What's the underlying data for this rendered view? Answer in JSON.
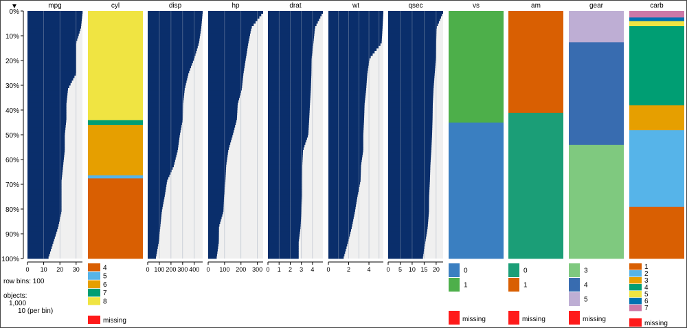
{
  "chart_data": {
    "type": "tableplot",
    "sort_indicator": "▼",
    "y_ticks": [
      "0%",
      "10%",
      "20%",
      "30%",
      "40%",
      "50%",
      "60%",
      "70%",
      "80%",
      "90%",
      "100%"
    ],
    "sidebar": {
      "row_bins_label": "row bins:",
      "row_bins_value": "100",
      "objects_label": "objects:",
      "objects_value": "1,000",
      "per_bin_value": "10",
      "per_bin_label": "(per bin)"
    },
    "missing_label": "missing",
    "missing_color": "#ff1a1a",
    "numeric_fill": "#0a2e6b",
    "numeric_bg": "#f0f0f0",
    "numeric_columns": [
      {
        "name": "mpg",
        "min": 10.4,
        "max": 33.9,
        "ticks": [
          0,
          10,
          20,
          30
        ],
        "xmax": 33.9,
        "rank": [
          13,
          16,
          19,
          21,
          21,
          21,
          22,
          23,
          23,
          24,
          24,
          25,
          30,
          30,
          30,
          33,
          34
        ],
        "grid": [
          10,
          20,
          30
        ]
      },
      {
        "name": "disp",
        "min": 71.1,
        "max": 472,
        "ticks": [
          0,
          100,
          200,
          300,
          400
        ],
        "xmax": 472,
        "rank": [
          472,
          460,
          440,
          400,
          350,
          318,
          304,
          301,
          276,
          258,
          225,
          167,
          146,
          121,
          108,
          95,
          71
        ],
        "grid": [
          100,
          200,
          300,
          400
        ]
      },
      {
        "name": "hp",
        "min": 52,
        "max": 335,
        "ticks": [
          0,
          100,
          200,
          300
        ],
        "xmax": 335,
        "rank": [
          335,
          264,
          245,
          230,
          215,
          205,
          180,
          175,
          150,
          123,
          110,
          105,
          97,
          93,
          66,
          65,
          52
        ],
        "grid": [
          100,
          200,
          300
        ]
      },
      {
        "name": "drat",
        "min": 2.76,
        "max": 4.93,
        "ticks": [
          0,
          1,
          2,
          3,
          4
        ],
        "xmax": 4.93,
        "rank": [
          4.93,
          4.22,
          4.08,
          3.92,
          3.9,
          3.85,
          3.77,
          3.7,
          3.62,
          3.15,
          3.08,
          3.07,
          3.07,
          3.0,
          2.93,
          2.76,
          2.76
        ],
        "grid": [
          1,
          2,
          3,
          4
        ]
      },
      {
        "name": "wt",
        "min": 1.51,
        "max": 5.42,
        "ticks": [
          0,
          2,
          4
        ],
        "xmax": 5.42,
        "rank": [
          5.42,
          5.34,
          5.25,
          4.07,
          3.84,
          3.73,
          3.57,
          3.52,
          3.44,
          3.44,
          3.22,
          3.17,
          2.875,
          2.62,
          2.32,
          1.94,
          1.51
        ],
        "grid": [
          1,
          2,
          3,
          4,
          5
        ]
      },
      {
        "name": "qsec",
        "min": 14.5,
        "max": 22.9,
        "ticks": [
          0,
          5,
          10,
          15,
          20
        ],
        "xmax": 22.9,
        "rank": [
          22.9,
          20.2,
          20.0,
          19.9,
          19.4,
          18.9,
          18.6,
          18.5,
          18.3,
          17.98,
          17.6,
          17.4,
          17.05,
          17.0,
          16.5,
          15.5,
          14.5
        ],
        "grid": [
          5,
          10,
          15,
          20
        ]
      }
    ],
    "categorical_columns": [
      {
        "name": "cyl",
        "levels": [
          {
            "label": "4",
            "color": "#d95f02"
          },
          {
            "label": "5",
            "color": "#56b4e9"
          },
          {
            "label": "6",
            "color": "#e69f00"
          },
          {
            "label": "7",
            "color": "#009e73"
          },
          {
            "label": "8",
            "color": "#f0e442"
          }
        ],
        "fractions": [
          0.325,
          0.012,
          0.203,
          0.02,
          0.44
        ]
      },
      {
        "name": "vs",
        "levels": [
          {
            "label": "0",
            "color": "#3a7fc1"
          },
          {
            "label": "1",
            "color": "#4daf4a"
          }
        ],
        "fractions": [
          0.55,
          0.45
        ]
      },
      {
        "name": "am",
        "levels": [
          {
            "label": "0",
            "color": "#1b9e77"
          },
          {
            "label": "1",
            "color": "#d95f02"
          }
        ],
        "fractions": [
          0.59,
          0.41
        ]
      },
      {
        "name": "gear",
        "levels": [
          {
            "label": "3",
            "color": "#7fc97f"
          },
          {
            "label": "4",
            "color": "#386cb0"
          },
          {
            "label": "5",
            "color": "#beaed4"
          }
        ],
        "fractions": [
          0.46,
          0.415,
          0.125
        ]
      },
      {
        "name": "carb",
        "levels": [
          {
            "label": "1",
            "color": "#d95f02"
          },
          {
            "label": "2",
            "color": "#56b4e9"
          },
          {
            "label": "3",
            "color": "#e69f00"
          },
          {
            "label": "4",
            "color": "#009e73"
          },
          {
            "label": "5",
            "color": "#f0e442"
          },
          {
            "label": "6",
            "color": "#0072b2"
          },
          {
            "label": "7",
            "color": "#cc79a7"
          }
        ],
        "fractions": [
          0.21,
          0.31,
          0.1,
          0.32,
          0.02,
          0.015,
          0.025
        ]
      }
    ]
  }
}
